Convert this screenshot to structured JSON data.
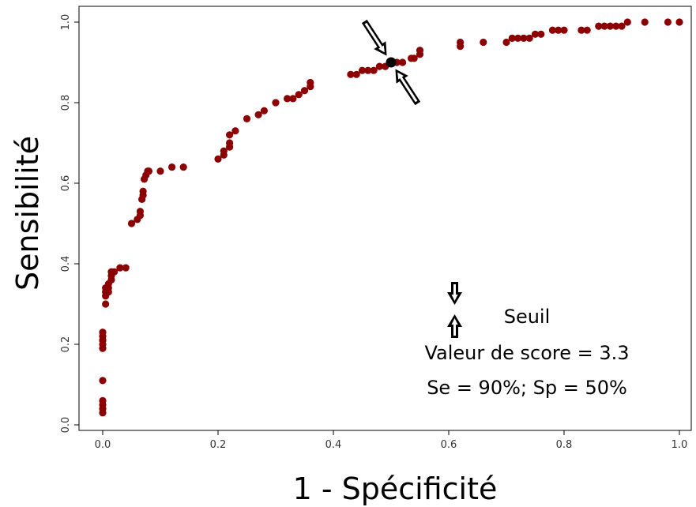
{
  "chart_data": {
    "type": "scatter",
    "title": "",
    "xlabel": "1 - Spécificité",
    "ylabel": "Sensibilité",
    "xlim": [
      0,
      1
    ],
    "ylim": [
      0,
      1
    ],
    "xticks": [
      "0.0",
      "0.2",
      "0.4",
      "0.6",
      "0.8",
      "1.0"
    ],
    "yticks": [
      "0.0",
      "0.2",
      "0.4",
      "0.6",
      "0.8",
      "1.0"
    ],
    "grid": false,
    "point_color": "#8b0000",
    "highlight_color": "#000000",
    "x": [
      0.0,
      0.0,
      0.0,
      0.0,
      0.0,
      0.0,
      0.0,
      0.0,
      0.0,
      0.0,
      0.0,
      0.005,
      0.005,
      0.005,
      0.005,
      0.01,
      0.01,
      0.01,
      0.015,
      0.015,
      0.015,
      0.02,
      0.03,
      0.04,
      0.05,
      0.06,
      0.065,
      0.065,
      0.068,
      0.07,
      0.07,
      0.072,
      0.075,
      0.078,
      0.08,
      0.1,
      0.12,
      0.14,
      0.2,
      0.21,
      0.21,
      0.22,
      0.22,
      0.22,
      0.23,
      0.25,
      0.27,
      0.28,
      0.3,
      0.32,
      0.33,
      0.34,
      0.35,
      0.36,
      0.36,
      0.43,
      0.44,
      0.45,
      0.46,
      0.47,
      0.48,
      0.49,
      0.5,
      0.51,
      0.52,
      0.535,
      0.54,
      0.55,
      0.55,
      0.62,
      0.62,
      0.66,
      0.7,
      0.71,
      0.72,
      0.73,
      0.74,
      0.75,
      0.76,
      0.78,
      0.79,
      0.8,
      0.83,
      0.84,
      0.86,
      0.87,
      0.88,
      0.89,
      0.9,
      0.91,
      0.94,
      0.98,
      1.0
    ],
    "y": [
      0.03,
      0.04,
      0.05,
      0.06,
      0.11,
      0.19,
      0.2,
      0.21,
      0.21,
      0.22,
      0.23,
      0.3,
      0.32,
      0.33,
      0.34,
      0.33,
      0.34,
      0.35,
      0.36,
      0.37,
      0.38,
      0.38,
      0.39,
      0.39,
      0.5,
      0.51,
      0.52,
      0.53,
      0.56,
      0.57,
      0.58,
      0.61,
      0.62,
      0.63,
      0.63,
      0.63,
      0.64,
      0.64,
      0.66,
      0.67,
      0.68,
      0.69,
      0.7,
      0.72,
      0.73,
      0.76,
      0.77,
      0.78,
      0.8,
      0.81,
      0.81,
      0.82,
      0.83,
      0.84,
      0.85,
      0.87,
      0.87,
      0.88,
      0.88,
      0.88,
      0.89,
      0.89,
      0.9,
      0.9,
      0.9,
      0.91,
      0.91,
      0.92,
      0.93,
      0.94,
      0.95,
      0.95,
      0.95,
      0.96,
      0.96,
      0.96,
      0.96,
      0.97,
      0.97,
      0.98,
      0.98,
      0.98,
      0.98,
      0.98,
      0.99,
      0.99,
      0.99,
      0.99,
      0.99,
      1.0,
      1.0,
      1.0,
      1.0
    ],
    "highlight_point": {
      "x": 0.5,
      "y": 0.9
    },
    "annotation": {
      "line1": "Seuil",
      "line2": "Valeur de score = 3.3",
      "line3": "Se = 90%; Sp = 50%"
    }
  }
}
